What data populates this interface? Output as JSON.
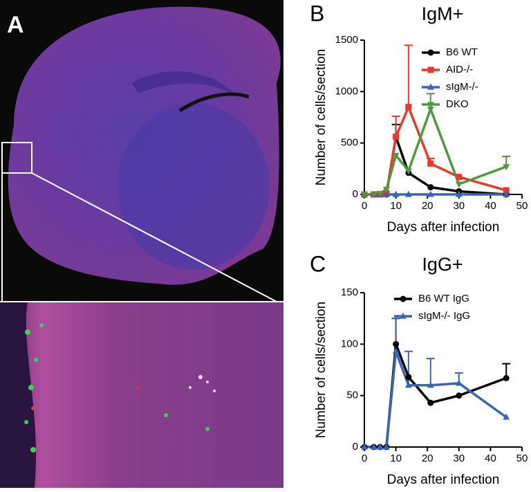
{
  "image_panel": {
    "label": "A"
  },
  "chart_data": [
    {
      "type": "line",
      "panel_label": "B",
      "title": "IgM+",
      "xlabel": "Days after infection",
      "ylabel": "Number of cells/section",
      "x": [
        0,
        3,
        5,
        7,
        10,
        14,
        21,
        30,
        45
      ],
      "xlim": [
        0,
        50
      ],
      "xticks": [
        0,
        10,
        20,
        30,
        40,
        50
      ],
      "ylim": [
        0,
        1500
      ],
      "yticks": [
        0,
        500,
        1000,
        1500
      ],
      "legend": "upper right",
      "series": [
        {
          "name": "B6 WT",
          "color": "#000000",
          "marker": "circle",
          "values": [
            0,
            0,
            0,
            0,
            560,
            210,
            70,
            30,
            0
          ],
          "errors": [
            null,
            null,
            null,
            null,
            120,
            null,
            null,
            null,
            null
          ]
        },
        {
          "name": "AID-/-",
          "color": "#e8392c",
          "marker": "square",
          "values": [
            0,
            0,
            0,
            10,
            560,
            850,
            300,
            170,
            40
          ],
          "errors": [
            null,
            null,
            null,
            null,
            200,
            600,
            50,
            null,
            null
          ]
        },
        {
          "name": "sIgM-/-",
          "color": "#3a64b7",
          "marker": "triangle-up",
          "values": [
            0,
            0,
            0,
            0,
            0,
            0,
            0,
            0,
            0
          ],
          "errors": [
            null,
            null,
            null,
            null,
            null,
            null,
            null,
            null,
            null
          ]
        },
        {
          "name": "DKO",
          "color": "#4f9a3c",
          "marker": "triangle-down",
          "values": [
            0,
            0,
            10,
            50,
            380,
            230,
            830,
            100,
            270
          ],
          "errors": [
            null,
            null,
            null,
            null,
            null,
            null,
            150,
            null,
            100
          ]
        }
      ]
    },
    {
      "type": "line",
      "panel_label": "C",
      "title": "IgG+",
      "xlabel": "Days after infection",
      "ylabel": "Number of cells/section",
      "x": [
        0,
        3,
        5,
        7,
        10,
        14,
        21,
        30,
        45
      ],
      "xlim": [
        0,
        50
      ],
      "xticks": [
        0,
        10,
        20,
        30,
        40,
        50
      ],
      "ylim": [
        0,
        150
      ],
      "yticks": [
        0,
        50,
        100,
        150
      ],
      "legend": "upper right",
      "series": [
        {
          "name": "B6 WT IgG",
          "color": "#000000",
          "marker": "circle",
          "values": [
            0,
            0,
            0,
            0,
            100,
            68,
            43,
            50,
            67
          ],
          "errors": [
            null,
            null,
            null,
            null,
            25,
            null,
            null,
            null,
            14
          ]
        },
        {
          "name": "sIgM-/- IgG",
          "color": "#3a64b7",
          "marker": "triangle-up",
          "values": [
            0,
            0,
            0,
            0,
            93,
            60,
            60,
            62,
            29
          ],
          "errors": [
            null,
            null,
            null,
            null,
            32,
            33,
            26,
            10,
            null
          ]
        }
      ]
    }
  ]
}
